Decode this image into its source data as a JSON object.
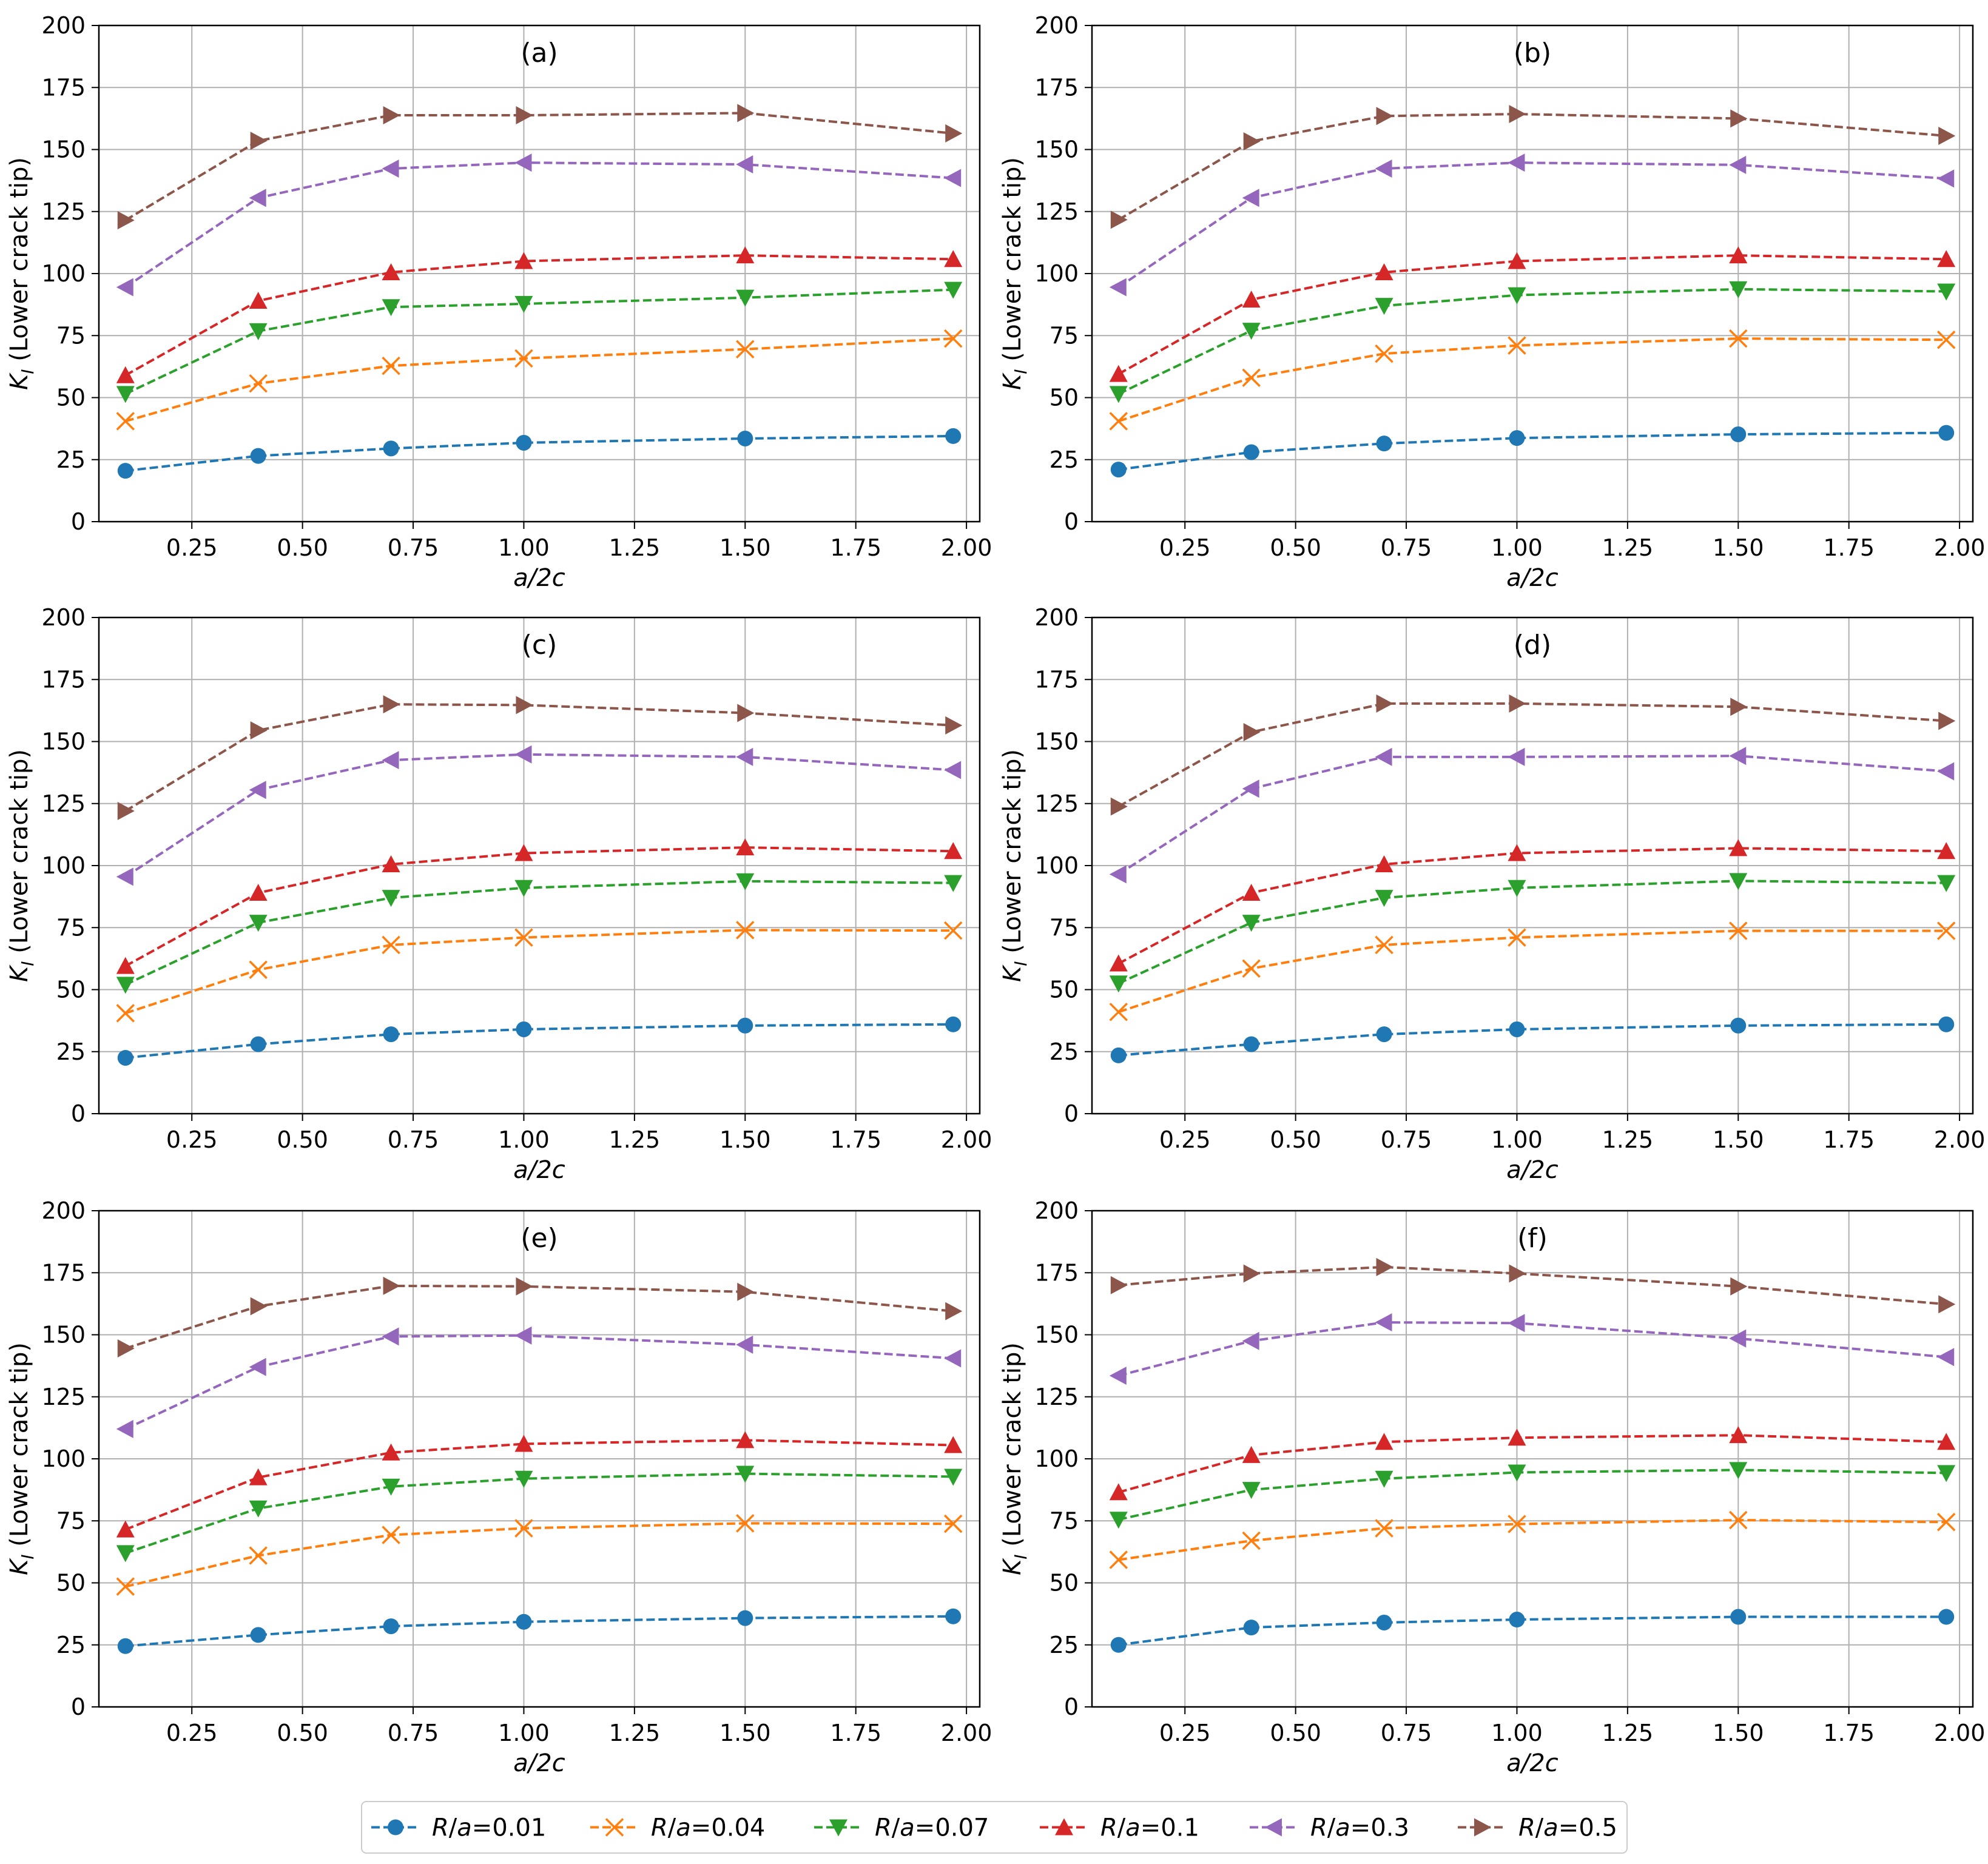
{
  "figure": {
    "x_axis_label": "a/2c",
    "y_axis_label": "K_I (Lower crack tip)",
    "y_axis_label_parts": {
      "symbol": "K",
      "subscript": "I",
      "rest": " (Lower crack tip)"
    }
  },
  "chart_data": {
    "type": "line",
    "x": [
      0.1,
      0.4,
      0.7,
      1.0,
      1.5,
      1.97
    ],
    "xlim": [
      0.04,
      2.03
    ],
    "ylim": [
      0,
      200
    ],
    "xticks": [
      0.25,
      0.5,
      0.75,
      1.0,
      1.25,
      1.5,
      1.75,
      2.0
    ],
    "xtick_labels": [
      "0.25",
      "0.50",
      "0.75",
      "1.00",
      "1.25",
      "1.50",
      "1.75",
      "2.00"
    ],
    "yticks": [
      0,
      25,
      50,
      75,
      100,
      125,
      150,
      175,
      200
    ],
    "ytick_labels": [
      "0",
      "25",
      "50",
      "75",
      "100",
      "125",
      "150",
      "175",
      "200"
    ],
    "xlabel": "a/2c",
    "ylabel": "K_I (Lower crack tip)",
    "grid": true,
    "legend_position": "bottom-center",
    "series_styles": [
      {
        "name": "R/a=0.01",
        "color": "#1f77b4",
        "marker": "circle"
      },
      {
        "name": "R/a=0.04",
        "color": "#ff7f0e",
        "marker": "x"
      },
      {
        "name": "R/a=0.07",
        "color": "#2ca02c",
        "marker": "triangle-down"
      },
      {
        "name": "R/a=0.1",
        "color": "#d62728",
        "marker": "triangle-up"
      },
      {
        "name": "R/a=0.3",
        "color": "#9467bd",
        "marker": "triangle-left"
      },
      {
        "name": "R/a=0.5",
        "color": "#8c564b",
        "marker": "triangle-right"
      }
    ],
    "legend": [
      {
        "prefix": "R",
        "suffix": "/",
        "var": "a",
        "value": "=0.01"
      },
      {
        "prefix": "R",
        "suffix": "/",
        "var": "a",
        "value": "=0.04"
      },
      {
        "prefix": "R",
        "suffix": "/",
        "var": "a",
        "value": "=0.07"
      },
      {
        "prefix": "R",
        "suffix": "/",
        "var": "a",
        "value": "=0.1"
      },
      {
        "prefix": "R",
        "suffix": "/",
        "var": "a",
        "value": "=0.3"
      },
      {
        "prefix": "R",
        "suffix": "/",
        "var": "a",
        "value": "=0.5"
      }
    ],
    "panels": [
      {
        "title": "(a)",
        "series": [
          [
            20.5,
            26.5,
            29.5,
            31.8,
            33.5,
            34.5
          ],
          [
            40.5,
            55.7,
            62.8,
            65.8,
            69.5,
            73.8
          ],
          [
            51.5,
            76.8,
            86.5,
            87.8,
            90.3,
            93.5
          ],
          [
            59.0,
            89.0,
            100.5,
            105.0,
            107.3,
            105.8
          ],
          [
            94.5,
            130.5,
            142.3,
            144.7,
            144.0,
            138.5
          ],
          [
            121.5,
            153.5,
            163.8,
            163.8,
            164.7,
            156.5
          ]
        ]
      },
      {
        "title": "(b)",
        "series": [
          [
            21.0,
            28.0,
            31.5,
            33.7,
            35.2,
            35.8
          ],
          [
            40.5,
            58.0,
            67.7,
            71.0,
            73.8,
            73.3
          ],
          [
            51.5,
            77.0,
            87.0,
            91.3,
            93.7,
            92.8
          ],
          [
            59.5,
            89.5,
            100.5,
            105.0,
            107.3,
            105.8
          ],
          [
            94.5,
            130.5,
            142.3,
            144.7,
            143.8,
            138.3
          ],
          [
            121.7,
            153.3,
            163.5,
            164.3,
            162.5,
            155.5
          ]
        ]
      },
      {
        "title": "(c)",
        "series": [
          [
            22.5,
            28.0,
            32.0,
            34.0,
            35.5,
            36.0
          ],
          [
            40.5,
            58.0,
            68.0,
            71.0,
            74.0,
            73.8
          ],
          [
            52.0,
            77.0,
            87.0,
            91.0,
            93.7,
            93.0
          ],
          [
            59.5,
            89.0,
            100.5,
            105.0,
            107.3,
            105.8
          ],
          [
            95.5,
            130.5,
            142.5,
            144.8,
            143.8,
            138.5
          ],
          [
            122.0,
            154.5,
            165.0,
            164.7,
            161.5,
            156.5
          ]
        ]
      },
      {
        "title": "(d)",
        "series": [
          [
            23.5,
            28.0,
            32.0,
            34.0,
            35.5,
            36.0
          ],
          [
            41.0,
            58.5,
            68.0,
            71.0,
            73.7,
            73.7
          ],
          [
            52.5,
            77.0,
            87.0,
            91.0,
            93.8,
            93.0
          ],
          [
            60.5,
            89.0,
            100.5,
            105.0,
            107.0,
            105.8
          ],
          [
            96.5,
            131.0,
            143.8,
            143.8,
            144.2,
            138.0
          ],
          [
            123.8,
            153.8,
            165.3,
            165.3,
            164.0,
            158.3
          ]
        ]
      },
      {
        "title": "(e)",
        "series": [
          [
            24.5,
            29.0,
            32.5,
            34.3,
            35.8,
            36.5
          ],
          [
            48.5,
            61.0,
            69.3,
            72.0,
            74.0,
            73.8
          ],
          [
            62.0,
            80.0,
            88.8,
            92.0,
            94.0,
            92.8
          ],
          [
            71.5,
            92.5,
            102.5,
            106.0,
            107.5,
            105.5
          ],
          [
            112.0,
            137.0,
            149.3,
            149.7,
            146.0,
            140.5
          ],
          [
            144.5,
            161.5,
            169.7,
            169.5,
            167.3,
            159.5
          ]
        ]
      },
      {
        "title": "(f)",
        "series": [
          [
            25.0,
            32.0,
            34.0,
            35.2,
            36.3,
            36.3
          ],
          [
            59.3,
            67.0,
            72.0,
            73.7,
            75.3,
            74.5
          ],
          [
            75.5,
            87.5,
            92.0,
            94.5,
            95.5,
            94.3
          ],
          [
            86.5,
            101.5,
            106.8,
            108.5,
            109.5,
            106.8
          ],
          [
            133.5,
            147.5,
            155.0,
            154.7,
            148.5,
            141.0
          ],
          [
            170.0,
            174.7,
            177.3,
            174.7,
            169.5,
            162.3
          ]
        ]
      }
    ]
  }
}
